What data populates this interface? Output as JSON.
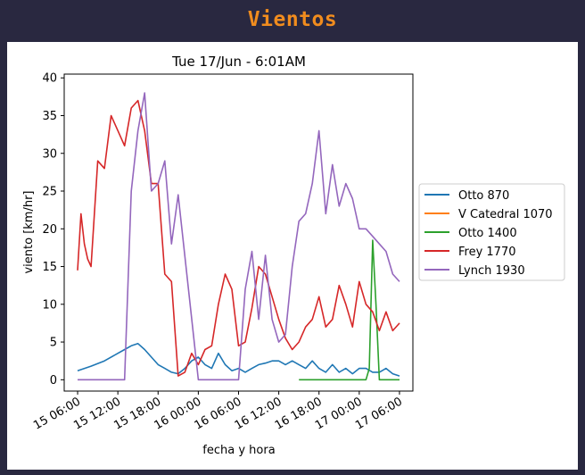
{
  "page": {
    "title": "Vientos"
  },
  "chart_data": {
    "type": "line",
    "title": "Tue 17/Jun - 6:01AM",
    "xlabel": "fecha y hora",
    "ylabel": "viento [km/hr]",
    "xlim": [
      "2025-06-15T04:00",
      "2025-06-17T08:00"
    ],
    "ylim": [
      -1.5,
      40.5
    ],
    "y_ticks": [
      0,
      5,
      10,
      15,
      20,
      25,
      30,
      35,
      40
    ],
    "x_ticks": [
      {
        "t": "2025-06-15T06:00",
        "label": "15 06:00"
      },
      {
        "t": "2025-06-15T12:00",
        "label": "15 12:00"
      },
      {
        "t": "2025-06-15T18:00",
        "label": "15 18:00"
      },
      {
        "t": "2025-06-16T00:00",
        "label": "16 00:00"
      },
      {
        "t": "2025-06-16T06:00",
        "label": "16 06:00"
      },
      {
        "t": "2025-06-16T12:00",
        "label": "16 12:00"
      },
      {
        "t": "2025-06-16T18:00",
        "label": "16 18:00"
      },
      {
        "t": "2025-06-17T00:00",
        "label": "17 00:00"
      },
      {
        "t": "2025-06-17T06:00",
        "label": "17 06:00"
      }
    ],
    "grid": false,
    "legend_position": "right, outside plot",
    "series": [
      {
        "name": "Otto 870",
        "color": "#1f77b4",
        "x": [
          "2025-06-15T06:00",
          "2025-06-15T08:00",
          "2025-06-15T10:00",
          "2025-06-15T12:00",
          "2025-06-15T13:00",
          "2025-06-15T14:00",
          "2025-06-15T15:00",
          "2025-06-15T16:00",
          "2025-06-15T17:00",
          "2025-06-15T18:00",
          "2025-06-15T19:00",
          "2025-06-15T20:00",
          "2025-06-15T21:00",
          "2025-06-15T22:00",
          "2025-06-15T23:00",
          "2025-06-16T00:00",
          "2025-06-16T01:00",
          "2025-06-16T02:00",
          "2025-06-16T03:00",
          "2025-06-16T04:00",
          "2025-06-16T05:00",
          "2025-06-16T06:00",
          "2025-06-16T07:00",
          "2025-06-16T08:00",
          "2025-06-16T09:00",
          "2025-06-16T10:00",
          "2025-06-16T11:00",
          "2025-06-16T12:00",
          "2025-06-16T13:00",
          "2025-06-16T14:00",
          "2025-06-16T15:00",
          "2025-06-16T16:00",
          "2025-06-16T17:00",
          "2025-06-16T18:00",
          "2025-06-16T19:00",
          "2025-06-16T20:00",
          "2025-06-16T21:00",
          "2025-06-16T22:00",
          "2025-06-16T23:00",
          "2025-06-17T00:00",
          "2025-06-17T01:00",
          "2025-06-17T02:00",
          "2025-06-17T03:00",
          "2025-06-17T04:00",
          "2025-06-17T05:00",
          "2025-06-17T06:00"
        ],
        "y": [
          1.2,
          1.8,
          2.5,
          3.5,
          4.0,
          4.5,
          4.8,
          4.0,
          3.0,
          2.0,
          1.5,
          1.0,
          0.8,
          1.5,
          2.5,
          3.0,
          2.0,
          1.5,
          3.5,
          2.0,
          1.2,
          1.5,
          1.0,
          1.5,
          2.0,
          2.2,
          2.5,
          2.5,
          2.0,
          2.5,
          2.0,
          1.5,
          2.5,
          1.5,
          1.0,
          2.0,
          1.0,
          1.5,
          0.8,
          1.5,
          1.5,
          1.0,
          1.0,
          1.5,
          0.8,
          0.5
        ]
      },
      {
        "name": "V Catedral 1070",
        "color": "#ff7f0e",
        "x": [],
        "y": []
      },
      {
        "name": "Otto 1400",
        "color": "#2ca02c",
        "x": [
          "2025-06-16T15:00",
          "2025-06-17T00:00",
          "2025-06-17T01:00",
          "2025-06-17T01:30",
          "2025-06-17T02:00",
          "2025-06-17T02:30",
          "2025-06-17T03:00",
          "2025-06-17T06:00"
        ],
        "y": [
          0,
          0,
          0,
          1.5,
          18.5,
          10,
          0,
          0
        ]
      },
      {
        "name": "Frey 1770",
        "color": "#d62728",
        "x": [
          "2025-06-15T06:00",
          "2025-06-15T06:30",
          "2025-06-15T07:00",
          "2025-06-15T07:30",
          "2025-06-15T08:00",
          "2025-06-15T09:00",
          "2025-06-15T10:00",
          "2025-06-15T11:00",
          "2025-06-15T12:00",
          "2025-06-15T13:00",
          "2025-06-15T14:00",
          "2025-06-15T15:00",
          "2025-06-15T16:00",
          "2025-06-15T17:00",
          "2025-06-15T18:00",
          "2025-06-15T19:00",
          "2025-06-15T20:00",
          "2025-06-15T21:00",
          "2025-06-15T22:00",
          "2025-06-15T23:00",
          "2025-06-16T00:00",
          "2025-06-16T01:00",
          "2025-06-16T02:00",
          "2025-06-16T03:00",
          "2025-06-16T04:00",
          "2025-06-16T05:00",
          "2025-06-16T06:00",
          "2025-06-16T07:00",
          "2025-06-16T08:00",
          "2025-06-16T09:00",
          "2025-06-16T10:00",
          "2025-06-16T11:00",
          "2025-06-16T12:00",
          "2025-06-16T13:00",
          "2025-06-16T14:00",
          "2025-06-16T15:00",
          "2025-06-16T16:00",
          "2025-06-16T17:00",
          "2025-06-16T18:00",
          "2025-06-16T19:00",
          "2025-06-16T20:00",
          "2025-06-16T21:00",
          "2025-06-16T22:00",
          "2025-06-16T23:00",
          "2025-06-17T00:00",
          "2025-06-17T01:00",
          "2025-06-17T02:00",
          "2025-06-17T03:00",
          "2025-06-17T04:00",
          "2025-06-17T05:00",
          "2025-06-17T06:00"
        ],
        "y": [
          14.5,
          22,
          18,
          16,
          15,
          29,
          28,
          35,
          33,
          31,
          36,
          37,
          33,
          26,
          26,
          14,
          13,
          0.5,
          1,
          3.5,
          2,
          4,
          4.5,
          10,
          14,
          12,
          4.5,
          5,
          9.5,
          15,
          14,
          11,
          8,
          5.5,
          4,
          5,
          7,
          8,
          11,
          7,
          8,
          12.5,
          10,
          7,
          13,
          10,
          9,
          6.5,
          9,
          6.5,
          7.5
        ]
      },
      {
        "name": "Lynch 1930",
        "color": "#9467bd",
        "x": [
          "2025-06-15T06:00",
          "2025-06-15T13:00",
          "2025-06-15T14:00",
          "2025-06-15T15:00",
          "2025-06-15T16:00",
          "2025-06-15T17:00",
          "2025-06-15T18:00",
          "2025-06-15T19:00",
          "2025-06-15T20:00",
          "2025-06-15T21:00",
          "2025-06-16T00:00",
          "2025-06-16T06:00",
          "2025-06-16T07:00",
          "2025-06-16T08:00",
          "2025-06-16T09:00",
          "2025-06-16T10:00",
          "2025-06-16T11:00",
          "2025-06-16T12:00",
          "2025-06-16T13:00",
          "2025-06-16T14:00",
          "2025-06-16T15:00",
          "2025-06-16T16:00",
          "2025-06-16T17:00",
          "2025-06-16T18:00",
          "2025-06-16T19:00",
          "2025-06-16T20:00",
          "2025-06-16T21:00",
          "2025-06-16T22:00",
          "2025-06-16T23:00",
          "2025-06-17T00:00",
          "2025-06-17T01:00",
          "2025-06-17T02:00",
          "2025-06-17T03:00",
          "2025-06-17T04:00",
          "2025-06-17T05:00",
          "2025-06-17T06:00"
        ],
        "y": [
          0,
          0,
          25,
          33,
          38,
          25,
          26,
          29,
          18,
          24.5,
          0,
          0,
          12,
          17,
          8,
          16.5,
          8,
          5,
          6,
          15,
          21,
          22,
          26,
          33,
          22,
          28.5,
          23,
          26,
          24,
          20,
          20,
          19,
          18,
          17,
          14,
          13
        ]
      }
    ]
  }
}
